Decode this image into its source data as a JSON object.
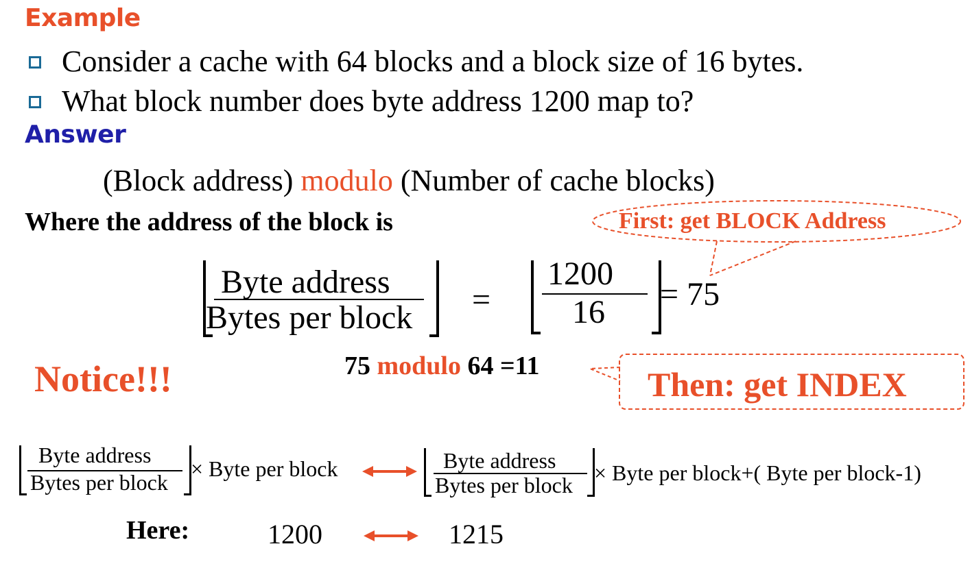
{
  "heading_example": "Example",
  "bullets": [
    "Consider a cache with 64 blocks and a block size of 16 bytes.",
    "What block number does byte address 1200 map to?"
  ],
  "heading_answer": "Answer",
  "formula": {
    "left": "(Block address)",
    "op": "modulo",
    "right": "(Number of cache blocks)"
  },
  "where_text": "Where the address of the block is",
  "callout_block": "First: get BLOCK Address",
  "fraction1": {
    "numerator": "Byte address",
    "denominator": "Bytes per block"
  },
  "equals": "=",
  "fraction2": {
    "numerator": "1200",
    "denominator": "16"
  },
  "result1": "= 75",
  "mod_line": {
    "a": "75",
    "op": "modulo",
    "b": "64 =11"
  },
  "notice": "Notice!!!",
  "callout_index": "Then: get INDEX",
  "bottom": {
    "num": "Byte address",
    "den": "Bytes per block",
    "times_left": "× Byte per block",
    "times_right": "× Byte per block+( Byte per block-1)"
  },
  "here": {
    "label": "Here:",
    "start": "1200",
    "end": "1215"
  },
  "colors": {
    "accent_red": "#e8502a",
    "heading_blue": "#1f1fa8",
    "bullet_blue": "#1a6a96"
  }
}
